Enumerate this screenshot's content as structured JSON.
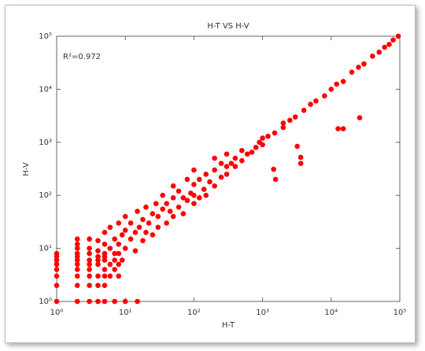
{
  "chart_data": {
    "type": "scatter",
    "title": "H-T VS H-V",
    "x_label": "H-T",
    "y_label": "H-V",
    "annotation": "R²=0.972",
    "color": "#ff0000",
    "xscale": "log",
    "yscale": "log",
    "xlim": [
      1,
      100000
    ],
    "ylim": [
      1,
      100000
    ],
    "xticks": [
      {
        "value": 1,
        "label": "10⁰"
      },
      {
        "value": 10,
        "label": "10¹"
      },
      {
        "value": 100,
        "label": "10²"
      },
      {
        "value": 1000,
        "label": "10³"
      },
      {
        "value": 10000,
        "label": "10⁴"
      },
      {
        "value": 100000,
        "label": "10⁵"
      }
    ],
    "yticks": [
      {
        "value": 1,
        "label": "10⁰"
      },
      {
        "value": 10,
        "label": "10¹"
      },
      {
        "value": 100,
        "label": "10²"
      },
      {
        "value": 1000,
        "label": "10³"
      },
      {
        "value": 10000,
        "label": "10⁴"
      },
      {
        "value": 100000,
        "label": "10⁵"
      }
    ],
    "x": [
      1,
      1,
      1,
      1,
      1,
      1,
      1,
      1,
      2,
      3,
      4,
      5,
      7,
      10,
      15,
      2,
      2,
      2,
      2,
      2,
      2,
      2,
      2,
      2,
      2,
      3,
      3,
      3,
      3,
      3,
      3,
      4,
      4,
      4,
      4,
      4,
      5,
      5,
      5,
      5,
      5,
      6,
      6,
      7,
      7,
      8,
      8,
      8,
      3,
      3,
      4,
      4,
      5,
      5,
      5,
      6,
      6,
      7,
      7,
      8,
      8,
      9,
      9,
      10,
      10,
      10,
      12,
      12,
      14,
      14,
      15,
      16,
      18,
      18,
      20,
      20,
      22,
      25,
      25,
      28,
      30,
      30,
      35,
      35,
      40,
      40,
      45,
      50,
      50,
      50,
      60,
      60,
      70,
      70,
      80,
      80,
      90,
      100,
      100,
      100,
      100,
      120,
      120,
      140,
      150,
      150,
      170,
      200,
      200,
      200,
      250,
      250,
      300,
      300,
      300,
      350,
      400,
      400,
      500,
      500,
      600,
      700,
      800,
      900,
      1000,
      1000,
      1200,
      1500,
      2000,
      2000,
      2500,
      3000,
      4000,
      5000,
      6000,
      8000,
      10000,
      12000,
      15000,
      20000,
      25000,
      30000,
      40000,
      50000,
      60000,
      70000,
      80000,
      95000,
      12600,
      15000,
      26000,
      3200,
      3600,
      3600,
      1450,
      1550
    ],
    "values": [
      1,
      2,
      3,
      4,
      5,
      6,
      7,
      8,
      1,
      1,
      1,
      1,
      1,
      1,
      1,
      2,
      3,
      4,
      5,
      6,
      7,
      8,
      10,
      12,
      15,
      2,
      3,
      4,
      5,
      6,
      8,
      2,
      3,
      5,
      6,
      7,
      2,
      3,
      4,
      6,
      8,
      3,
      5,
      4,
      6,
      3,
      5,
      8,
      10,
      15,
      9,
      14,
      7,
      12,
      20,
      10,
      25,
      8,
      15,
      12,
      30,
      6,
      18,
      10,
      22,
      40,
      15,
      30,
      9,
      20,
      50,
      25,
      14,
      35,
      20,
      60,
      30,
      18,
      45,
      70,
      25,
      40,
      55,
      100,
      30,
      70,
      50,
      40,
      90,
      150,
      60,
      120,
      45,
      90,
      80,
      200,
      110,
      70,
      100,
      160,
      300,
      90,
      200,
      130,
      250,
      100,
      180,
      150,
      300,
      500,
      220,
      400,
      250,
      350,
      600,
      400,
      350,
      500,
      450,
      700,
      600,
      650,
      800,
      1000,
      900,
      1200,
      1300,
      1500,
      1900,
      2300,
      2600,
      3000,
      4000,
      5200,
      6000,
      7500,
      10000,
      12500,
      14000,
      21000,
      26000,
      30000,
      42000,
      50000,
      62000,
      70000,
      85000,
      100000,
      1800,
      1800,
      2900,
      840,
      520,
      400,
      310,
      200
    ]
  }
}
